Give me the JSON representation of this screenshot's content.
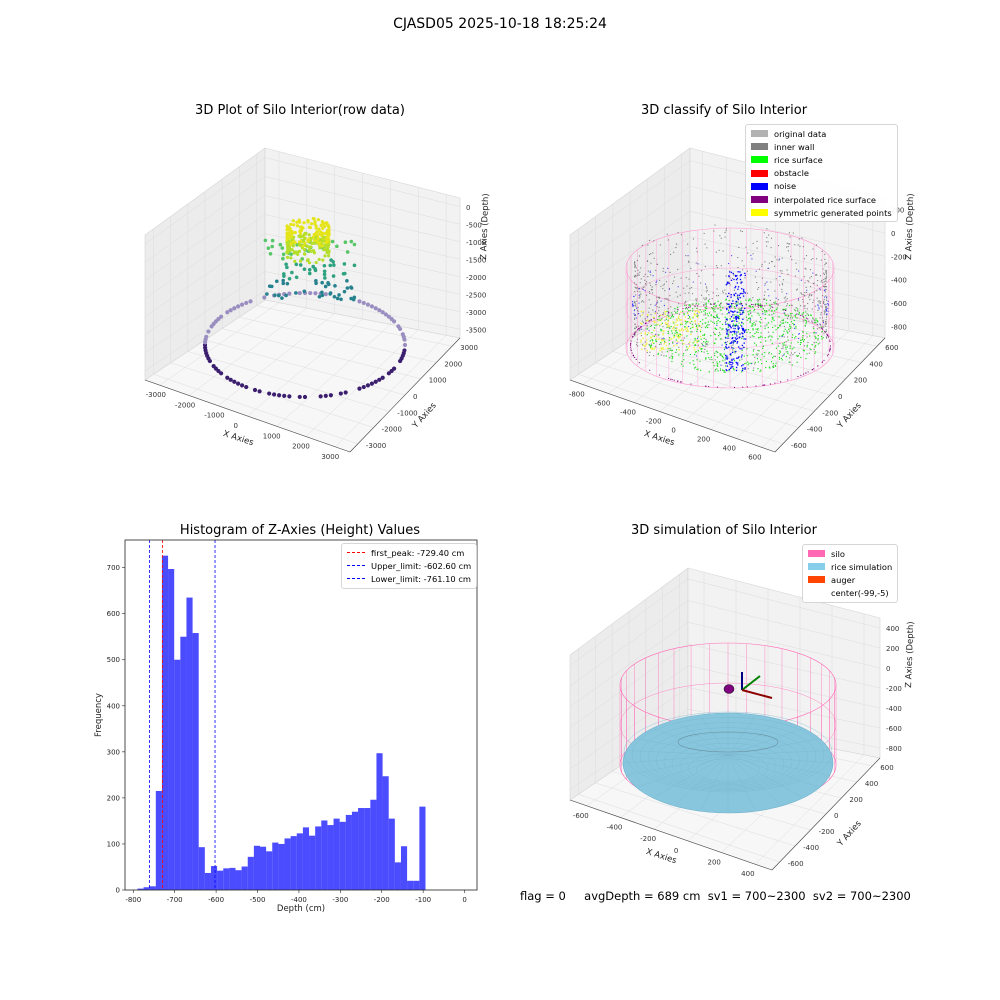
{
  "suptitle": "CJASD05 2025-10-18 18:25:24",
  "panels": {
    "raw": {
      "title": "3D Plot of Silo Interior(row data)",
      "xlabel": "X Axies",
      "ylabel": "Y Axies",
      "zlabel": "Z Axies (Depth)",
      "xticks": [
        "-3000",
        "-2000",
        "-1000",
        "0",
        "1000",
        "2000",
        "3000"
      ],
      "yticks": [
        "-3000",
        "-2000",
        "-1000",
        "0",
        "1000",
        "2000",
        "3000"
      ],
      "zticks": [
        "0",
        "-500",
        "-1000",
        "-1500",
        "-2000",
        "-2500",
        "-3000",
        "-3500"
      ]
    },
    "classify": {
      "title": "3D classify of Silo Interior",
      "xlabel": "X Axies",
      "ylabel": "Y Axies",
      "zlabel": "Z Axies (Depth)",
      "xticks": [
        "-800",
        "-600",
        "-400",
        "-200",
        "0",
        "200",
        "400",
        "600"
      ],
      "yticks": [
        "-600",
        "-400",
        "-200",
        "0",
        "200",
        "400",
        "600"
      ],
      "zticks": [
        "200",
        "0",
        "-200",
        "-400",
        "-600",
        "-800"
      ],
      "legend": [
        {
          "label": "original data",
          "color": "#b2b2b2"
        },
        {
          "label": "inner wall",
          "color": "#808080"
        },
        {
          "label": "rice surface",
          "color": "#00ff00"
        },
        {
          "label": "obstacle",
          "color": "#ff0000"
        },
        {
          "label": "noise",
          "color": "#0000ff"
        },
        {
          "label": "interpolated rice surface",
          "color": "#800080"
        },
        {
          "label": "symmetric generated points",
          "color": "#ffff00"
        }
      ]
    },
    "simulation": {
      "title": "3D simulation of Silo Interior",
      "xlabel": "X Axies",
      "ylabel": "Y Axies",
      "zlabel": "Z Axies (Depth)",
      "xticks": [
        "-600",
        "-400",
        "-200",
        "0",
        "200",
        "400"
      ],
      "yticks": [
        "-600",
        "-400",
        "-200",
        "0",
        "200",
        "400",
        "600"
      ],
      "zticks": [
        "400",
        "200",
        "0",
        "-200",
        "-400",
        "-600",
        "-800"
      ],
      "legend": [
        {
          "label": "silo",
          "color": "#ff69b4"
        },
        {
          "label": "rice simulation",
          "color": "#87ceeb"
        },
        {
          "label": "auger",
          "color": "#ff4500"
        },
        {
          "label": "center(-99,-5)",
          "color": ""
        }
      ]
    }
  },
  "footer": {
    "flag": "flag = 0",
    "stats": "avgDepth = 689 cm  sv1 = 700~2300  sv2 = 700~2300"
  },
  "chart_data": {
    "type": "bar",
    "title": "Histogram of Z-Axies (Height) Values",
    "xlabel": "Depth (cm)",
    "ylabel": "Frequency",
    "xlim": [
      -820,
      30
    ],
    "ylim": [
      0,
      760
    ],
    "xticks": [
      -800,
      -700,
      -600,
      -500,
      -400,
      -300,
      -200,
      -100,
      0
    ],
    "yticks": [
      0,
      100,
      200,
      300,
      400,
      500,
      600,
      700
    ],
    "bin_start": -790,
    "bin_width": 14.8,
    "color": "#0000ff",
    "values": [
      3,
      6,
      8,
      215,
      726,
      697,
      500,
      550,
      635,
      558,
      93,
      37,
      52,
      42,
      47,
      48,
      43,
      51,
      72,
      96,
      94,
      84,
      103,
      100,
      112,
      117,
      123,
      136,
      118,
      138,
      151,
      141,
      155,
      148,
      163,
      170,
      178,
      178,
      196,
      297,
      247,
      155,
      60,
      95,
      20,
      20,
      181
    ],
    "lines": [
      {
        "label": "first_peak: -729.40 cm",
        "value": -729.4,
        "color": "#ff0000"
      },
      {
        "label": "Upper_limit: -602.60 cm",
        "value": -602.6,
        "color": "#0000ff"
      },
      {
        "label": "Lower_limit: -761.10 cm",
        "value": -761.1,
        "color": "#0000ff"
      }
    ]
  }
}
